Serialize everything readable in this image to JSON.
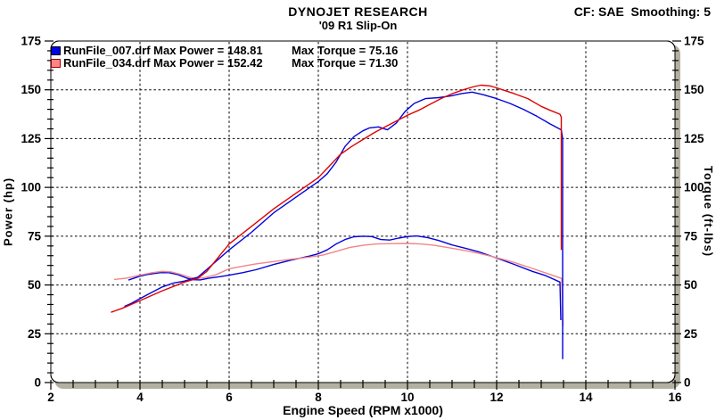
{
  "header": {
    "title": "DYNOJET RESEARCH",
    "subtitle": "'09 R1 Slip-On",
    "cf_smoothing": "CF: SAE  Smoothing: 5",
    "correction_factor": "SAE",
    "smoothing": "5"
  },
  "chart_data": {
    "type": "line",
    "title": "DYNOJET RESEARCH",
    "subtitle": "'09 R1 Slip-On",
    "xlabel": "Engine Speed (RPM x1000)",
    "ylabel_left": "Power (hp)",
    "ylabel_right": "Torque (ft-lbs)",
    "x_range": [
      2,
      16
    ],
    "x_major_step": 2,
    "x_minor_step": 0.5,
    "y_range": [
      0,
      175
    ],
    "y_major_step": 25,
    "y_minor_step": 5,
    "grid": "dashed",
    "legend_position": "top-left",
    "colors": {
      "frame": "#000000",
      "grid": "#000000",
      "shadow": "#b3b0a2",
      "plot_background": "#ffffff",
      "blue": "#0202dd",
      "red": "#dd0202",
      "salmon": "#f28585"
    },
    "legend": [
      {
        "file": "RunFile_007.drf",
        "max_power": 148.81,
        "max_torque": 75.16,
        "file_power_text": "RunFile_007.drf Max Power = 148.81",
        "torque_text": "Max Torque = 75.16",
        "swatch_color": "#0202e8"
      },
      {
        "file": "RunFile_034.drf",
        "max_power": 152.42,
        "max_torque": 71.3,
        "file_power_text": "RunFile_034.drf Max Power = 152.42",
        "torque_text": "Max Torque = 71.30",
        "swatch_color": "#ff8585"
      }
    ],
    "series": [
      {
        "name": "runfile-007-torque",
        "axis": "right",
        "color": "#0202dd",
        "points": [
          [
            3.74,
            52.5
          ],
          [
            4,
            54.5
          ],
          [
            4.2,
            55.5
          ],
          [
            4.45,
            56.3
          ],
          [
            4.65,
            56.3
          ],
          [
            4.85,
            55.3
          ],
          [
            5.05,
            53.5
          ],
          [
            5.2,
            52.7
          ],
          [
            5.35,
            52.6
          ],
          [
            5.55,
            53.5
          ],
          [
            5.8,
            54.3
          ],
          [
            6,
            55
          ],
          [
            6.3,
            56.3
          ],
          [
            6.6,
            57.8
          ],
          [
            7,
            60.5
          ],
          [
            7.4,
            62.8
          ],
          [
            7.8,
            64.8
          ],
          [
            8,
            66
          ],
          [
            8.2,
            68
          ],
          [
            8.4,
            71
          ],
          [
            8.6,
            73.3
          ],
          [
            8.8,
            74.7
          ],
          [
            9,
            75
          ],
          [
            9.2,
            74.8
          ],
          [
            9.4,
            73.3
          ],
          [
            9.6,
            73
          ],
          [
            9.8,
            74
          ],
          [
            10,
            74.8
          ],
          [
            10.2,
            75.1
          ],
          [
            10.45,
            74.3
          ],
          [
            10.7,
            72.8
          ],
          [
            11,
            70.5
          ],
          [
            11.3,
            68.8
          ],
          [
            11.6,
            67
          ],
          [
            12,
            63.8
          ],
          [
            12.4,
            60.5
          ],
          [
            12.8,
            57
          ],
          [
            13.1,
            54.8
          ],
          [
            13.42,
            51.5
          ],
          [
            13.44,
            32
          ]
        ]
      },
      {
        "name": "runfile-034-torque",
        "axis": "right",
        "color": "#f28585",
        "points": [
          [
            3.42,
            52.8
          ],
          [
            3.7,
            53.5
          ],
          [
            4,
            55
          ],
          [
            4.25,
            56.2
          ],
          [
            4.5,
            57
          ],
          [
            4.7,
            56.7
          ],
          [
            4.9,
            55.5
          ],
          [
            5.1,
            54
          ],
          [
            5.25,
            53.2
          ],
          [
            5.45,
            53.8
          ],
          [
            5.7,
            55.2
          ],
          [
            6,
            58.3
          ],
          [
            6.3,
            59.6
          ],
          [
            6.6,
            60.8
          ],
          [
            7,
            62
          ],
          [
            7.4,
            63.2
          ],
          [
            7.8,
            64.3
          ],
          [
            8.1,
            65.3
          ],
          [
            8.4,
            67.2
          ],
          [
            8.7,
            69.2
          ],
          [
            9,
            70.3
          ],
          [
            9.3,
            71
          ],
          [
            9.7,
            71.2
          ],
          [
            10,
            71.3
          ],
          [
            10.3,
            71
          ],
          [
            10.6,
            70.3
          ],
          [
            11,
            68.8
          ],
          [
            11.3,
            67.6
          ],
          [
            11.6,
            66.2
          ],
          [
            12,
            64
          ],
          [
            12.4,
            61.5
          ],
          [
            12.8,
            58.5
          ],
          [
            13.2,
            55.4
          ],
          [
            13.46,
            53.3
          ],
          [
            13.49,
            29
          ]
        ]
      },
      {
        "name": "runfile-007-power",
        "axis": "left",
        "color": "#0202dd",
        "points": [
          [
            3.65,
            39
          ],
          [
            3.8,
            40.5
          ],
          [
            4,
            43
          ],
          [
            4.25,
            46
          ],
          [
            4.5,
            49
          ],
          [
            4.75,
            51
          ],
          [
            5,
            52
          ],
          [
            5.3,
            54
          ],
          [
            5.5,
            58
          ],
          [
            5.75,
            63
          ],
          [
            6,
            68
          ],
          [
            6.5,
            77
          ],
          [
            7,
            87
          ],
          [
            7.5,
            95
          ],
          [
            8,
            103
          ],
          [
            8.2,
            107
          ],
          [
            8.4,
            113
          ],
          [
            8.6,
            121
          ],
          [
            8.8,
            126
          ],
          [
            9,
            129
          ],
          [
            9.15,
            130.5
          ],
          [
            9.35,
            131
          ],
          [
            9.55,
            129.5
          ],
          [
            9.75,
            133
          ],
          [
            9.95,
            139
          ],
          [
            10.15,
            143
          ],
          [
            10.4,
            145.5
          ],
          [
            10.7,
            146
          ],
          [
            11,
            147
          ],
          [
            11.2,
            148
          ],
          [
            11.45,
            148.8
          ],
          [
            11.7,
            147.5
          ],
          [
            12,
            145.5
          ],
          [
            12.3,
            143
          ],
          [
            12.6,
            140
          ],
          [
            12.9,
            136.5
          ],
          [
            13.2,
            132.5
          ],
          [
            13.45,
            129.5
          ],
          [
            13.48,
            125
          ],
          [
            13.48,
            12
          ]
        ]
      },
      {
        "name": "runfile-034-power",
        "axis": "left",
        "color": "#dd0202",
        "points": [
          [
            3.35,
            36
          ],
          [
            3.6,
            38
          ],
          [
            4,
            42
          ],
          [
            4.5,
            47
          ],
          [
            5,
            51.5
          ],
          [
            5.3,
            53.5
          ],
          [
            5.5,
            57
          ],
          [
            5.75,
            64
          ],
          [
            6,
            71
          ],
          [
            6.5,
            80
          ],
          [
            7,
            89
          ],
          [
            7.5,
            97
          ],
          [
            8,
            105
          ],
          [
            8.25,
            111
          ],
          [
            8.5,
            117
          ],
          [
            8.75,
            121
          ],
          [
            9,
            124.5
          ],
          [
            9.25,
            128
          ],
          [
            9.5,
            131
          ],
          [
            9.75,
            134
          ],
          [
            10,
            137
          ],
          [
            10.25,
            139.5
          ],
          [
            10.5,
            142.5
          ],
          [
            10.75,
            145.5
          ],
          [
            11,
            148
          ],
          [
            11.25,
            150
          ],
          [
            11.5,
            151.7
          ],
          [
            11.65,
            152.4
          ],
          [
            11.85,
            152
          ],
          [
            12,
            151
          ],
          [
            12.2,
            149.5
          ],
          [
            12.4,
            148
          ],
          [
            12.7,
            145.5
          ],
          [
            13,
            141.5
          ],
          [
            13.2,
            139.5
          ],
          [
            13.42,
            137.5
          ],
          [
            13.45,
            136
          ],
          [
            13.45,
            68
          ]
        ]
      }
    ]
  }
}
